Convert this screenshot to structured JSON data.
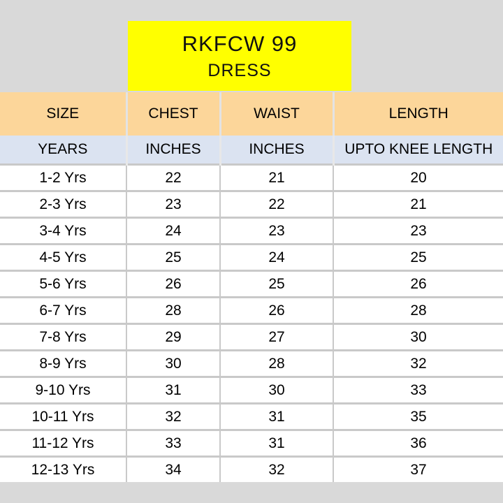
{
  "title": {
    "main": "RKFCW 99",
    "sub": "DRESS"
  },
  "table": {
    "headers": [
      "SIZE",
      "CHEST",
      "WAIST",
      "LENGTH"
    ],
    "units": [
      "YEARS",
      "INCHES",
      "INCHES",
      "UPTO KNEE LENGTH"
    ],
    "rows": [
      [
        "1-2 Yrs",
        "22",
        "21",
        "20"
      ],
      [
        "2-3 Yrs",
        "23",
        "22",
        "21"
      ],
      [
        "3-4 Yrs",
        "24",
        "23",
        "23"
      ],
      [
        "4-5 Yrs",
        "25",
        "24",
        "25"
      ],
      [
        "5-6 Yrs",
        "26",
        "25",
        "26"
      ],
      [
        "6-7 Yrs",
        "28",
        "26",
        "28"
      ],
      [
        "7-8 Yrs",
        "29",
        "27",
        "30"
      ],
      [
        "8-9 Yrs",
        "30",
        "28",
        "32"
      ],
      [
        "9-10 Yrs",
        "31",
        "30",
        "33"
      ],
      [
        "10-11 Yrs",
        "32",
        "31",
        "35"
      ],
      [
        "11-12 Yrs",
        "33",
        "31",
        "36"
      ],
      [
        "12-13 Yrs",
        "34",
        "32",
        "37"
      ]
    ]
  },
  "colors": {
    "title_bg": "#ffff00",
    "header_bg": "#fcd69a",
    "unit_bg": "#dbe3f1",
    "page_bg": "#d9d9d9"
  }
}
